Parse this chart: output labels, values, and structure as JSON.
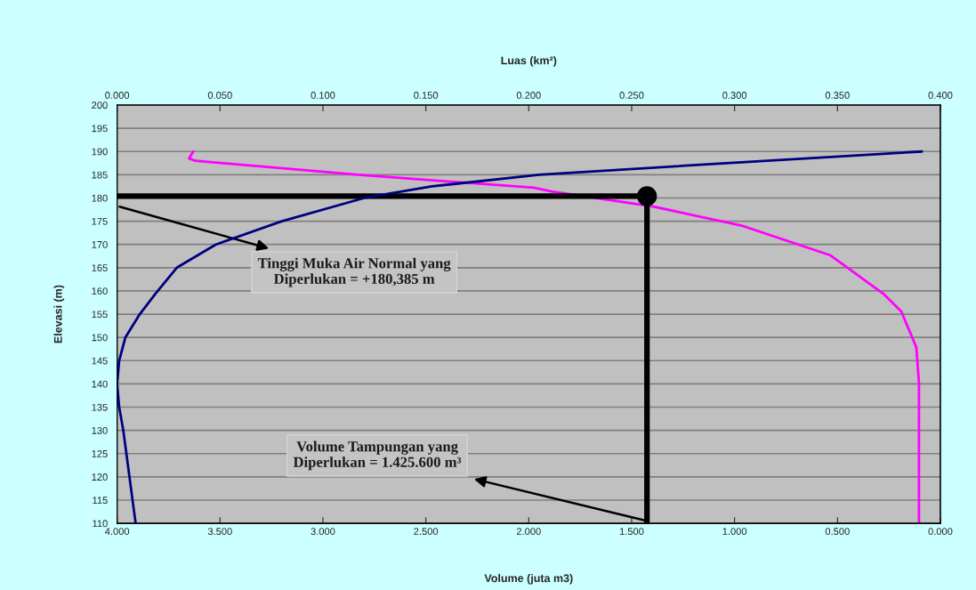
{
  "chart_data": {
    "type": "line",
    "xlabel": "Volume (juta m3)",
    "x2label": "Luas (km²)",
    "ylabel": "Elevasi (m)",
    "xlim": [
      4.0,
      0.0
    ],
    "xticks": [
      {
        "value": 4.0,
        "label": "4.000"
      },
      {
        "value": 3.5,
        "label": "3.500"
      },
      {
        "value": 3.0,
        "label": "3.000"
      },
      {
        "value": 2.5,
        "label": "2.500"
      },
      {
        "value": 2.0,
        "label": "2.000"
      },
      {
        "value": 1.5,
        "label": "1.500"
      },
      {
        "value": 1.0,
        "label": "1.000"
      },
      {
        "value": 0.5,
        "label": "0.500"
      },
      {
        "value": 0.0,
        "label": "0.000"
      }
    ],
    "x2lim": [
      0.0,
      0.4
    ],
    "x2ticks": [
      {
        "value": 0.0,
        "label": "0.000"
      },
      {
        "value": 0.05,
        "label": "0.050"
      },
      {
        "value": 0.1,
        "label": "0.100"
      },
      {
        "value": 0.15,
        "label": "0.150"
      },
      {
        "value": 0.2,
        "label": "0.200"
      },
      {
        "value": 0.25,
        "label": "0.250"
      },
      {
        "value": 0.3,
        "label": "0.300"
      },
      {
        "value": 0.35,
        "label": "0.350"
      },
      {
        "value": 0.4,
        "label": "0.400"
      }
    ],
    "ylim": [
      110,
      200
    ],
    "yticks": [
      110,
      115,
      120,
      125,
      130,
      135,
      140,
      145,
      150,
      155,
      160,
      165,
      170,
      175,
      180,
      185,
      190,
      195,
      200
    ],
    "grid": "y",
    "series": [
      {
        "axis": "x2",
        "color": "#000080",
        "x": [
          0.391,
          0.296,
          0.205,
          0.153,
          0.12,
          0.08,
          0.048,
          0.029,
          0.0186,
          0.011,
          0.004,
          0.001,
          0.0,
          0.001,
          0.003,
          0.009
        ],
        "values": [
          190,
          187.5,
          185,
          182.5,
          180,
          175,
          170,
          165,
          159.4,
          155,
          150,
          145,
          140,
          135,
          130,
          110
        ]
      },
      {
        "color": "#ff00ff",
        "x": [
          3.63,
          3.65,
          3.62,
          2.83,
          1.976,
          1.89,
          1.4,
          0.969,
          0.536,
          0.277,
          0.19,
          0.117,
          0.104,
          0.104
        ],
        "values": [
          190,
          188.5,
          188,
          185,
          182.2,
          181.4,
          178.2,
          174.1,
          167.7,
          159.4,
          155.6,
          147.9,
          140.2,
          110
        ]
      },
      {
        "color": "#000000",
        "x": [
          4.0,
          1.4256,
          1.4256
        ],
        "values": [
          180.385,
          180.385,
          110
        ]
      },
      {
        "type": "scatter",
        "color": "#000000",
        "x": [
          1.4256
        ],
        "values": [
          180.385
        ]
      }
    ],
    "annotations": [
      "Tinggi Muka Air Normal yang\nDiperlukan = +180,385 m",
      "Volume Tampungan yang\nDiperlukan = 1.425.600 m³"
    ]
  }
}
